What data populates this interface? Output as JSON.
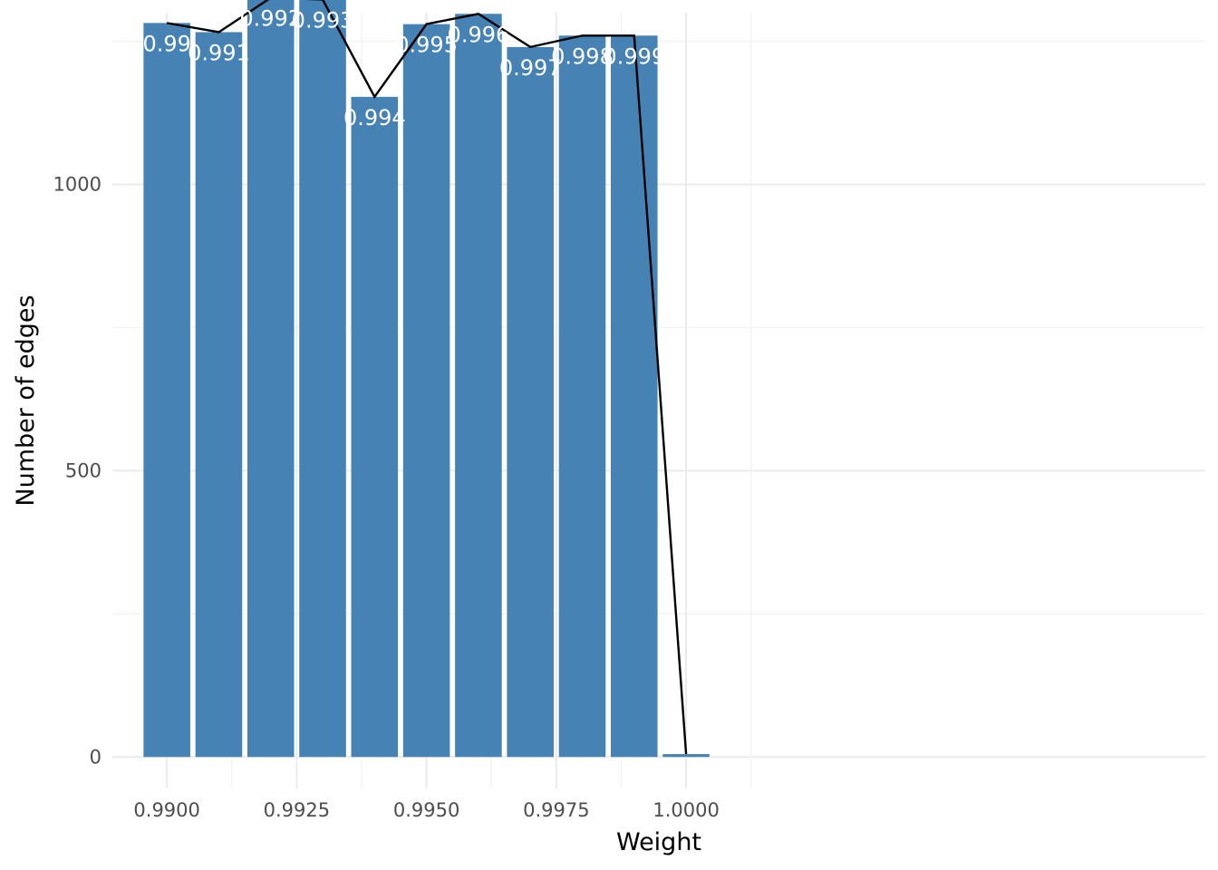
{
  "chart_data": {
    "type": "bar",
    "xlabel": "Weight",
    "ylabel": "Number of edges",
    "xlim": [
      0.98895,
      1.01
    ],
    "ylim": [
      -55,
      1300
    ],
    "x_ticks": [
      0.99,
      0.9925,
      0.995,
      0.9975,
      1.0
    ],
    "x_tick_labels": [
      "0.9900",
      "0.9925",
      "0.9950",
      "0.9975",
      "1.0000"
    ],
    "y_ticks": [
      0,
      500,
      1000
    ],
    "y_tick_labels": [
      "0",
      "500",
      "1000"
    ],
    "bar_width": 0.0009,
    "x": [
      0.99,
      0.991,
      0.992,
      0.993,
      0.994,
      0.995,
      0.996,
      0.997,
      0.998,
      0.999,
      1.0
    ],
    "values": [
      1282,
      1266,
      1326,
      1323,
      1153,
      1280,
      1298,
      1240,
      1260,
      1260,
      5
    ],
    "bar_labels": [
      "0.99",
      "0.991",
      "0.992",
      "0.993",
      "0.994",
      "0.995",
      "0.996",
      "0.997",
      "0.998",
      "0.999",
      ""
    ],
    "line": {
      "x": [
        0.99,
        0.991,
        0.992,
        0.993,
        0.994,
        0.995,
        0.996,
        0.997,
        0.998,
        0.999,
        1.0
      ],
      "y": [
        1282,
        1266,
        1326,
        1323,
        1153,
        1280,
        1298,
        1240,
        1260,
        1260,
        5
      ]
    },
    "colors": {
      "bar": "#4682b4",
      "line": "#000000",
      "label": "#ffffff"
    },
    "grid": true,
    "legend": "none"
  }
}
